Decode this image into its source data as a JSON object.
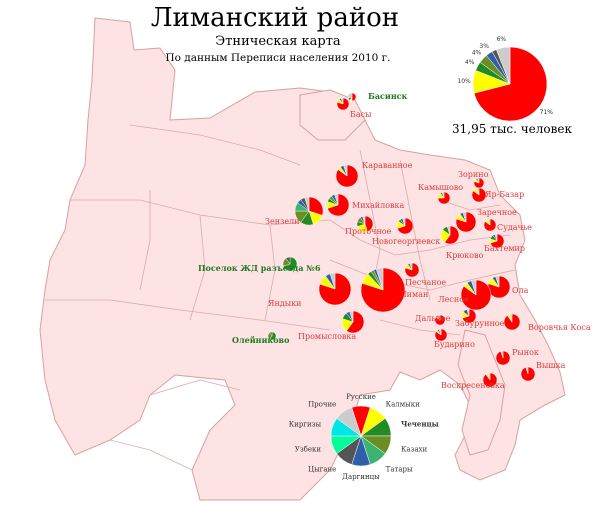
{
  "title": "Лиманский район",
  "subtitle": "Этническая карта",
  "source": "По данным Переписи населения 2010 г.",
  "total_population": "31,95 тыс. человек",
  "colors": {
    "russians": "#ff0000",
    "kalmyks": "#ffff00",
    "chechens": "#228b22",
    "kazakhs": "#6b8e23",
    "tatars": "#3cb371",
    "dargins": "#2f5fa8",
    "gypsies": "#555555",
    "uzbeks": "#00ff99",
    "kyrgyz": "#00e5e5",
    "other": "#cccccc",
    "territory": "#fde3e3",
    "border": "#d8a0a0"
  },
  "summary_pie": {
    "shares": [
      {
        "group": "russians",
        "value": 71,
        "label": "71%"
      },
      {
        "group": "kalmyks",
        "value": 10,
        "label": "10%"
      },
      {
        "group": "chechens",
        "value": 4,
        "label": "4%"
      },
      {
        "group": "kazakhs",
        "value": 4,
        "label": "4%"
      },
      {
        "group": "dargins",
        "value": 3,
        "label": "3%"
      },
      {
        "group": "gypsies",
        "value": 2,
        "label": ""
      },
      {
        "group": "other",
        "value": 6,
        "label": "6%"
      }
    ]
  },
  "legend": {
    "items": [
      {
        "group": "russians",
        "label": "Русские"
      },
      {
        "group": "kalmyks",
        "label": "Калмыки"
      },
      {
        "group": "chechens",
        "label": "Чеченцы"
      },
      {
        "group": "kazakhs",
        "label": "Казахи"
      },
      {
        "group": "tatars",
        "label": "Татары"
      },
      {
        "group": "dargins",
        "label": "Даргинцы"
      },
      {
        "group": "gypsies",
        "label": "Цыгане"
      },
      {
        "group": "uzbeks",
        "label": "Узбеки"
      },
      {
        "group": "kyrgyz",
        "label": "Киргизы"
      },
      {
        "group": "other",
        "label": "Прочие"
      }
    ]
  },
  "settlements": [
    {
      "name": "Басинск",
      "style": "green",
      "shares": [
        50,
        10,
        0,
        0,
        0,
        0,
        10,
        30
      ]
    },
    {
      "name": "Басы",
      "style": "red",
      "shares": [
        80,
        10,
        0,
        0,
        0,
        5,
        0,
        5
      ]
    },
    {
      "name": "Караванное",
      "style": "red",
      "shares": [
        85,
        5,
        0,
        0,
        0,
        5,
        0,
        5
      ]
    },
    {
      "name": "Михайловка",
      "style": "red",
      "shares": [
        70,
        10,
        5,
        5,
        0,
        5,
        0,
        5
      ]
    },
    {
      "name": "Зензели",
      "style": "red",
      "shares": [
        30,
        15,
        15,
        15,
        10,
        5,
        5,
        5
      ]
    },
    {
      "name": "Проточное",
      "style": "red",
      "shares": [
        45,
        25,
        10,
        10,
        0,
        5,
        0,
        5
      ]
    },
    {
      "name": "Поселок ЖД разъезда №6",
      "style": "green",
      "shares": [
        0,
        0,
        70,
        20,
        0,
        0,
        10,
        0
      ]
    },
    {
      "name": "Яндыки",
      "style": "red",
      "shares": [
        80,
        10,
        0,
        0,
        0,
        5,
        0,
        5
      ]
    },
    {
      "name": "Лиман",
      "style": "red",
      "shares": [
        80,
        8,
        3,
        2,
        0,
        2,
        0,
        5
      ]
    },
    {
      "name": "Песчаное",
      "style": "red",
      "shares": [
        80,
        10,
        0,
        0,
        0,
        5,
        0,
        5
      ]
    },
    {
      "name": "Промысловка",
      "style": "red",
      "shares": [
        60,
        20,
        10,
        0,
        0,
        5,
        0,
        5
      ]
    },
    {
      "name": "Олейниково",
      "style": "green",
      "shares": [
        0,
        0,
        60,
        30,
        0,
        0,
        10,
        0
      ]
    },
    {
      "name": "Зорино",
      "style": "red",
      "shares": [
        80,
        10,
        0,
        0,
        0,
        5,
        0,
        5
      ]
    },
    {
      "name": "Камышово",
      "style": "red",
      "shares": [
        75,
        15,
        0,
        0,
        0,
        5,
        0,
        5
      ]
    },
    {
      "name": "Яр-Базар",
      "style": "red",
      "shares": [
        85,
        10,
        0,
        0,
        0,
        0,
        0,
        5
      ]
    },
    {
      "name": "Заречное",
      "style": "red",
      "shares": [
        80,
        10,
        0,
        0,
        0,
        5,
        0,
        5
      ]
    },
    {
      "name": "Новогеоргиевск",
      "style": "red",
      "shares": [
        70,
        15,
        5,
        0,
        0,
        5,
        0,
        5
      ]
    },
    {
      "name": "Судачье",
      "style": "red",
      "shares": [
        85,
        10,
        0,
        0,
        0,
        0,
        0,
        5
      ]
    },
    {
      "name": "Крюково",
      "style": "red",
      "shares": [
        60,
        25,
        10,
        0,
        0,
        0,
        0,
        5
      ]
    },
    {
      "name": "Бахтемир",
      "style": "red",
      "shares": [
        70,
        10,
        10,
        0,
        0,
        5,
        0,
        5
      ]
    },
    {
      "name": "Ола",
      "style": "red",
      "shares": [
        80,
        10,
        0,
        0,
        0,
        5,
        0,
        5
      ]
    },
    {
      "name": "Лесное",
      "style": "red",
      "shares": [
        85,
        5,
        0,
        0,
        0,
        5,
        0,
        5
      ]
    },
    {
      "name": "Дальнее",
      "style": "red",
      "shares": [
        85,
        5,
        5,
        0,
        0,
        0,
        0,
        5
      ]
    },
    {
      "name": "Бударино",
      "style": "red",
      "shares": [
        85,
        5,
        0,
        0,
        0,
        5,
        0,
        5
      ]
    },
    {
      "name": "Забурунное",
      "style": "red",
      "shares": [
        70,
        15,
        0,
        0,
        0,
        10,
        0,
        5
      ]
    },
    {
      "name": "Воровчья Коса",
      "style": "red",
      "shares": [
        90,
        5,
        0,
        0,
        0,
        0,
        0,
        5
      ]
    },
    {
      "name": "Рынок",
      "style": "red",
      "shares": [
        95,
        0,
        0,
        0,
        0,
        0,
        0,
        5
      ]
    },
    {
      "name": "Вышка",
      "style": "red",
      "shares": [
        95,
        0,
        0,
        0,
        0,
        0,
        0,
        5
      ]
    },
    {
      "name": "Воскресеновка",
      "style": "red",
      "shares": [
        90,
        5,
        0,
        0,
        0,
        0,
        0,
        5
      ]
    }
  ],
  "share_order": [
    "russians",
    "kalmyks",
    "chechens",
    "kazakhs",
    "tatars",
    "dargins",
    "gypsies",
    "other"
  ]
}
